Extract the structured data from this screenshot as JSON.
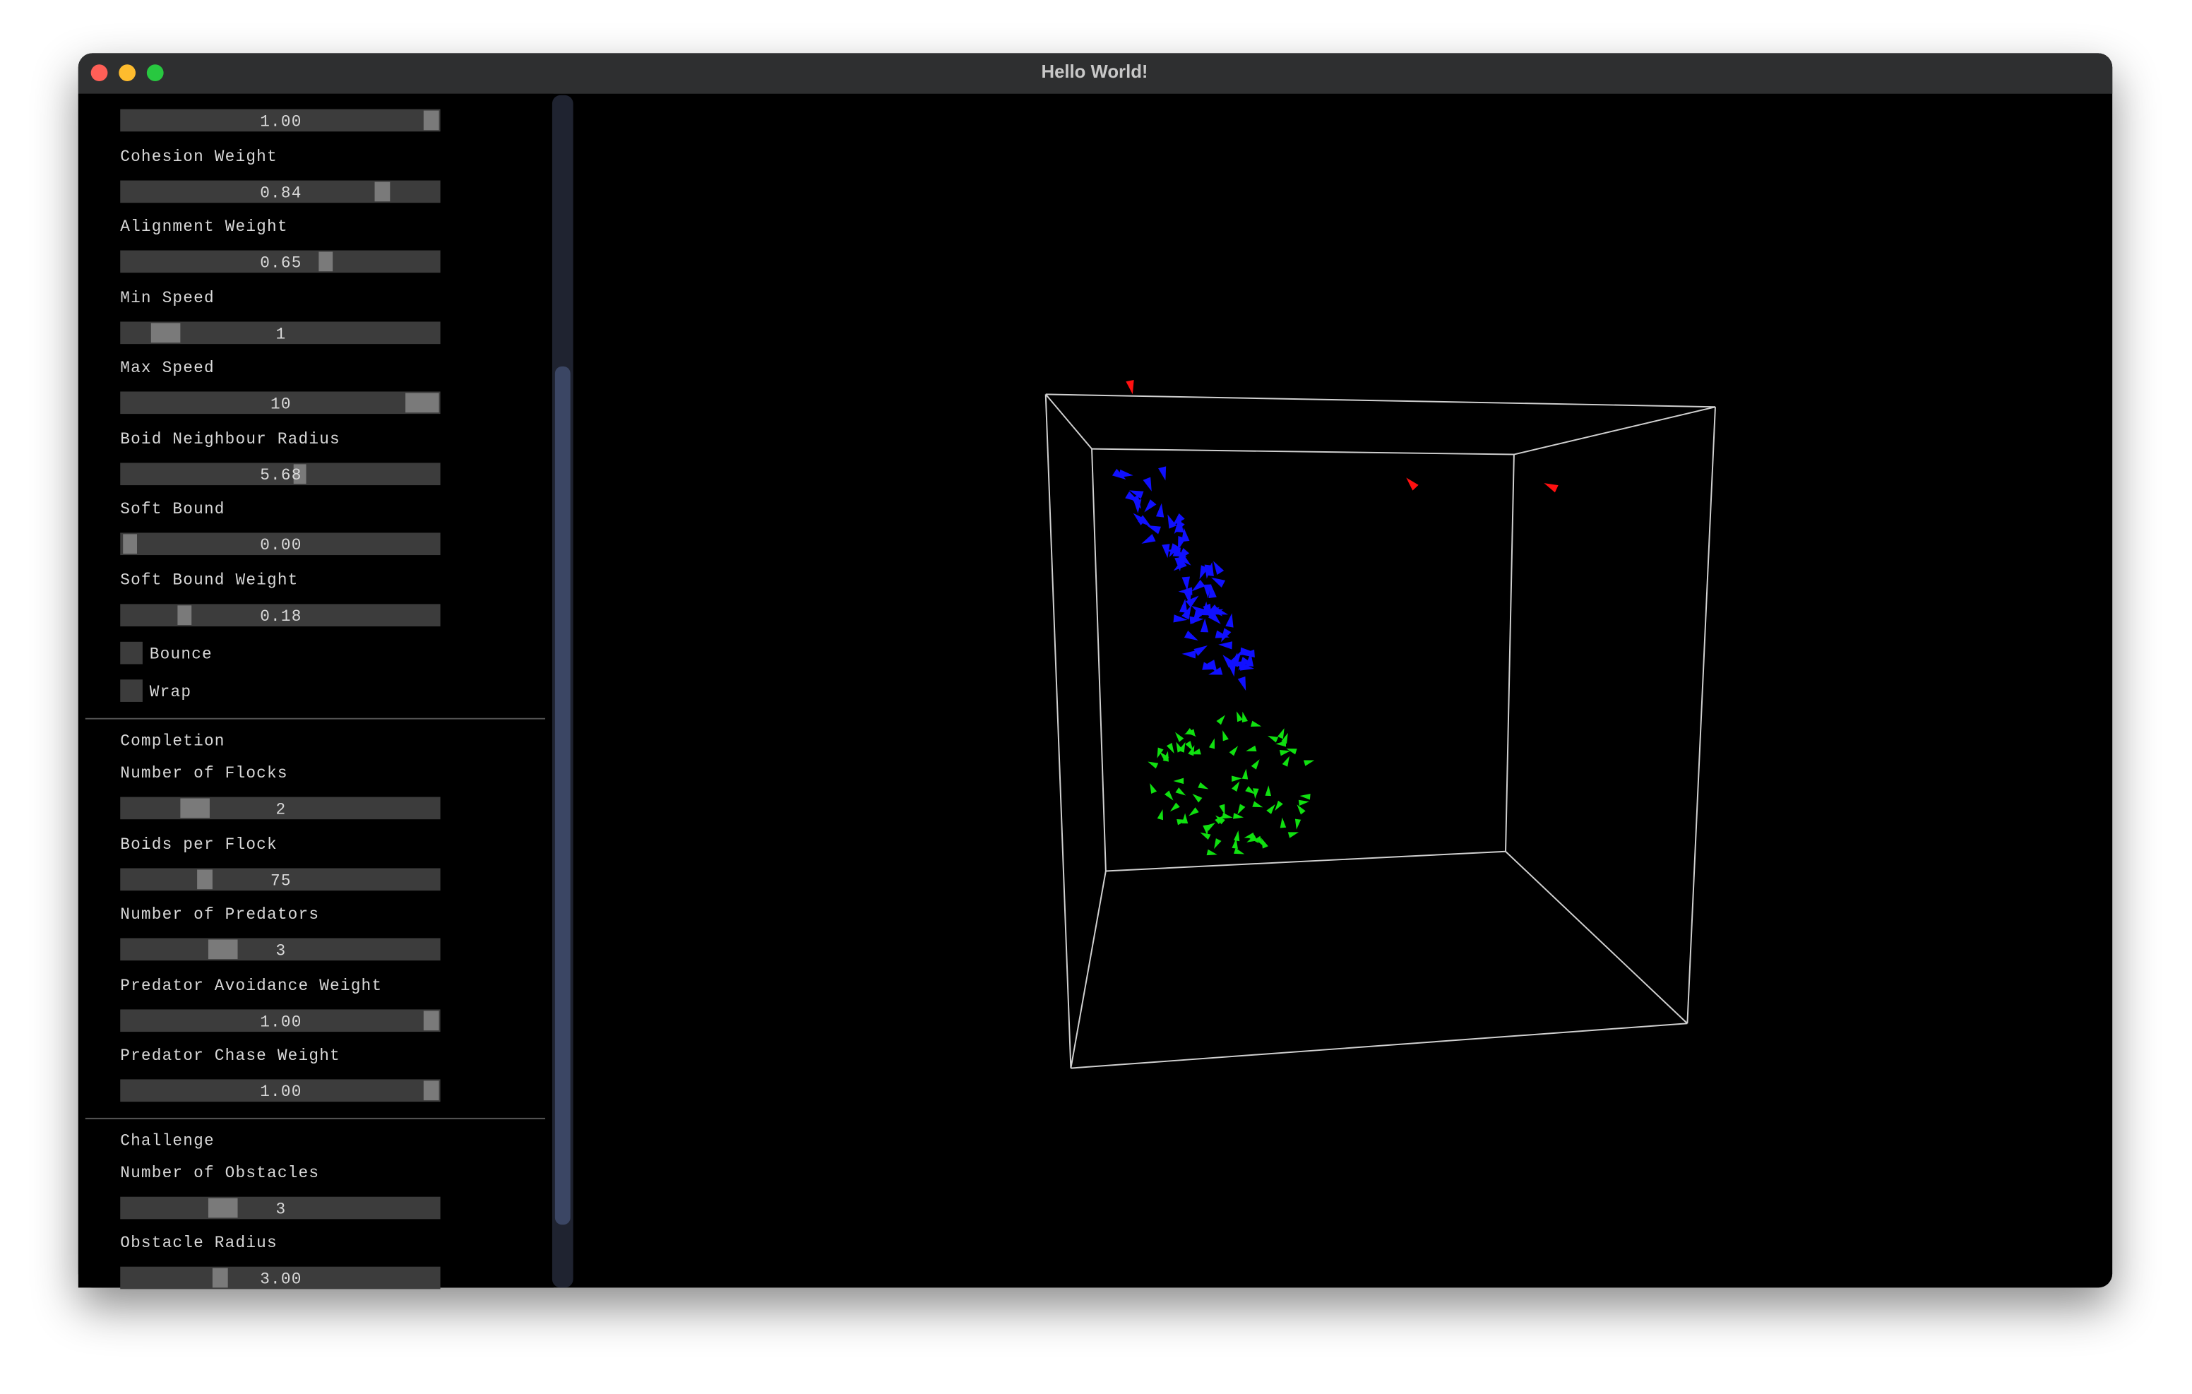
{
  "window": {
    "title": "Hello World!"
  },
  "panel": {
    "groups": [
      {
        "sliders": [
          {
            "value": "1.00"
          },
          {
            "label": "Cohesion Weight",
            "value": "0.84"
          },
          {
            "label": "Alignment Weight",
            "value": "0.65"
          },
          {
            "label": "Min Speed",
            "value": "1"
          },
          {
            "label": "Max Speed",
            "value": "10"
          },
          {
            "label": "Boid Neighbour Radius",
            "value": "5.68"
          },
          {
            "label": "Soft Bound",
            "value": "0.00"
          },
          {
            "label": "Soft Bound Weight",
            "value": "0.18"
          }
        ],
        "checkboxes": [
          "Bounce",
          "Wrap"
        ]
      },
      {
        "title": "Completion",
        "sliders": [
          {
            "label": "Number of Flocks",
            "value": "2"
          },
          {
            "label": "Boids per Flock",
            "value": "75"
          },
          {
            "label": "Number of Predators",
            "value": "3"
          },
          {
            "label": "Predator Avoidance Weight",
            "value": "1.00"
          },
          {
            "label": "Predator Chase Weight",
            "value": "1.00"
          }
        ]
      },
      {
        "title": "Challenge",
        "sliders": [
          {
            "label": "Number of Obstacles",
            "value": "3"
          },
          {
            "label": "Obstacle Radius",
            "value": "3.00"
          }
        ]
      }
    ]
  }
}
